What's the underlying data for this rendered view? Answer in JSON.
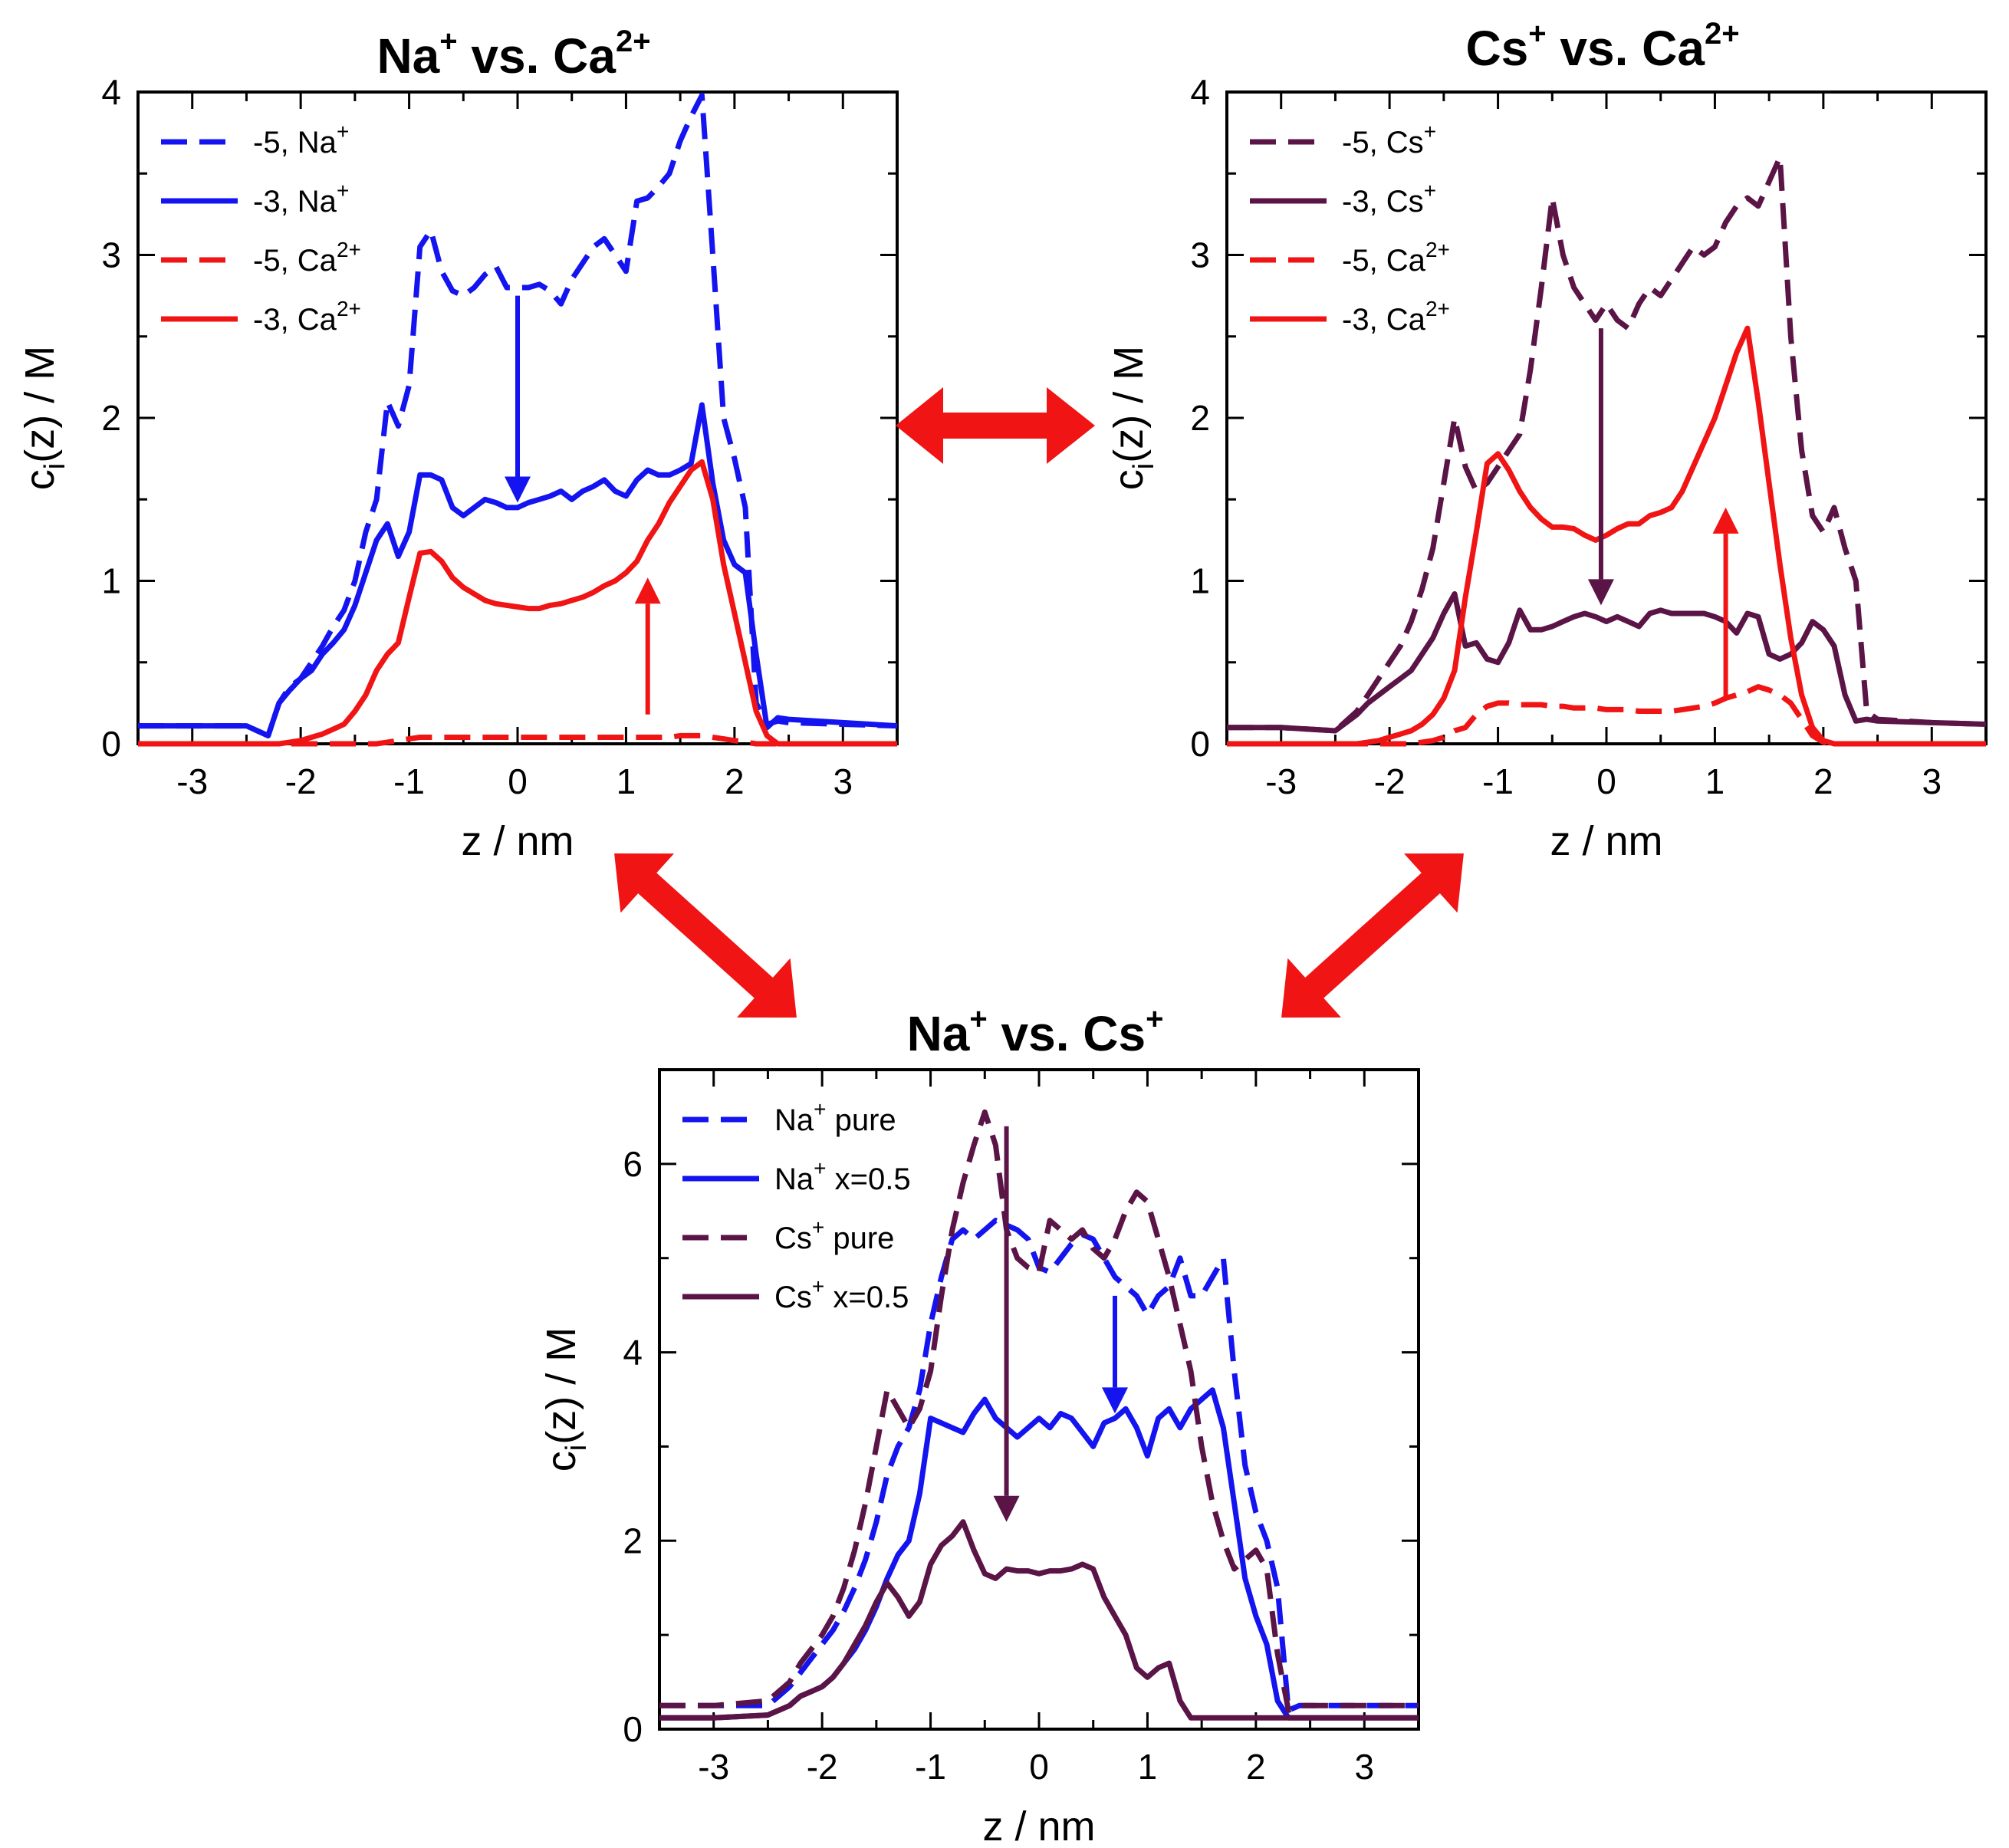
{
  "colors": {
    "na": "#1414f0",
    "cs": "#5a1446",
    "ca": "#f01414",
    "arrow": "#f01414",
    "axis": "#000000"
  },
  "chart_data": [
    {
      "type": "line",
      "title": "Na+ vs. Ca2+",
      "title_parts": {
        "ion1": "Na",
        "ion1_charge": "+",
        "vs": " vs. ",
        "ion2": "Ca",
        "ion2_charge": "2+"
      },
      "xlabel": "z / nm",
      "ylabel": "ci(z) / M",
      "ylabel_parts": {
        "pre": "c",
        "sub": "i",
        "post": "(z) / M"
      },
      "xlim": [
        -3.5,
        3.5
      ],
      "ylim": [
        0,
        4
      ],
      "xticks": [
        -3,
        -2,
        -1,
        0,
        1,
        2,
        3
      ],
      "yticks": [
        0,
        1,
        2,
        3,
        4
      ],
      "x": [
        -3.5,
        -3.0,
        -2.5,
        -2.3,
        -2.2,
        -2.1,
        -2.0,
        -1.9,
        -1.8,
        -1.7,
        -1.6,
        -1.5,
        -1.4,
        -1.3,
        -1.2,
        -1.1,
        -1.0,
        -0.9,
        -0.8,
        -0.7,
        -0.6,
        -0.5,
        -0.4,
        -0.3,
        -0.2,
        -0.1,
        0.0,
        0.1,
        0.2,
        0.3,
        0.4,
        0.5,
        0.6,
        0.7,
        0.8,
        0.9,
        1.0,
        1.1,
        1.2,
        1.3,
        1.4,
        1.5,
        1.6,
        1.7,
        1.8,
        1.9,
        2.0,
        2.1,
        2.2,
        2.3,
        2.4,
        2.5,
        3.0,
        3.5
      ],
      "series": [
        {
          "name": "-5, Na+",
          "label": "-5,",
          "ion": "Na",
          "charge": "+",
          "color": "#1414f0",
          "dash": true,
          "values": [
            0.11,
            0.11,
            0.11,
            0.05,
            0.25,
            0.35,
            0.4,
            0.5,
            0.6,
            0.72,
            0.82,
            1.0,
            1.3,
            1.5,
            2.1,
            1.95,
            2.2,
            3.05,
            3.15,
            2.9,
            2.78,
            2.75,
            2.8,
            2.88,
            2.93,
            2.8,
            2.8,
            2.8,
            2.82,
            2.78,
            2.7,
            2.85,
            2.95,
            3.05,
            3.1,
            3.0,
            2.9,
            3.33,
            3.35,
            3.42,
            3.5,
            3.7,
            3.85,
            3.98,
            3.0,
            2.0,
            1.75,
            1.45,
            0.25,
            0.12,
            0.14,
            0.13,
            0.12,
            0.11
          ]
        },
        {
          "name": "-3, Na+",
          "label": "-3,",
          "ion": "Na",
          "charge": "+",
          "color": "#1414f0",
          "dash": false,
          "values": [
            0.11,
            0.11,
            0.11,
            0.05,
            0.25,
            0.33,
            0.4,
            0.45,
            0.55,
            0.62,
            0.7,
            0.85,
            1.05,
            1.25,
            1.35,
            1.15,
            1.3,
            1.65,
            1.65,
            1.62,
            1.45,
            1.4,
            1.45,
            1.5,
            1.48,
            1.45,
            1.45,
            1.48,
            1.5,
            1.52,
            1.55,
            1.5,
            1.55,
            1.58,
            1.62,
            1.55,
            1.52,
            1.62,
            1.68,
            1.65,
            1.65,
            1.68,
            1.72,
            2.08,
            1.6,
            1.25,
            1.1,
            1.05,
            0.55,
            0.1,
            0.16,
            0.15,
            0.13,
            0.11
          ]
        },
        {
          "name": "-5, Ca2+",
          "label": "-5,",
          "ion": "Ca",
          "charge": "2+",
          "color": "#f01414",
          "dash": true,
          "values": [
            0,
            0,
            0,
            0,
            0,
            0,
            0,
            0,
            0,
            0,
            0,
            0,
            0,
            0,
            0.01,
            0.02,
            0.03,
            0.04,
            0.04,
            0.04,
            0.04,
            0.04,
            0.04,
            0.04,
            0.04,
            0.04,
            0.04,
            0.04,
            0.04,
            0.04,
            0.04,
            0.04,
            0.04,
            0.04,
            0.04,
            0.04,
            0.04,
            0.04,
            0.04,
            0.04,
            0.04,
            0.05,
            0.05,
            0.05,
            0.04,
            0.03,
            0.02,
            0.01,
            0,
            0,
            0,
            0,
            0,
            0
          ]
        },
        {
          "name": "-3, Ca2+",
          "label": "-3,",
          "ion": "Ca",
          "charge": "2+",
          "color": "#f01414",
          "dash": false,
          "values": [
            0,
            0,
            0,
            0,
            0,
            0.01,
            0.02,
            0.04,
            0.06,
            0.09,
            0.12,
            0.2,
            0.3,
            0.45,
            0.55,
            0.62,
            0.9,
            1.17,
            1.18,
            1.12,
            1.02,
            0.96,
            0.92,
            0.88,
            0.86,
            0.85,
            0.84,
            0.83,
            0.83,
            0.85,
            0.86,
            0.88,
            0.9,
            0.93,
            0.97,
            1.0,
            1.05,
            1.12,
            1.25,
            1.35,
            1.48,
            1.58,
            1.68,
            1.73,
            1.5,
            1.1,
            0.8,
            0.5,
            0.2,
            0.05,
            0,
            0,
            0,
            0
          ]
        }
      ],
      "arrows": [
        {
          "color": "#1414f0",
          "x": 0.0,
          "y_from": 2.75,
          "y_to": 1.48
        },
        {
          "color": "#f01414",
          "x": 1.2,
          "y_from": 0.18,
          "y_to": 1.02
        }
      ]
    },
    {
      "type": "line",
      "title": "Cs+ vs. Ca2+",
      "title_parts": {
        "ion1": "Cs",
        "ion1_charge": "+",
        "vs": " vs. ",
        "ion2": "Ca",
        "ion2_charge": "2+"
      },
      "xlabel": "z / nm",
      "ylabel": "ci(z) / M",
      "ylabel_parts": {
        "pre": "c",
        "sub": "i",
        "post": "(z) / M"
      },
      "xlim": [
        -3.5,
        3.5
      ],
      "ylim": [
        0,
        4
      ],
      "xticks": [
        -3,
        -2,
        -1,
        0,
        1,
        2,
        3
      ],
      "yticks": [
        0,
        1,
        2,
        3,
        4
      ],
      "x": [
        -3.5,
        -3.0,
        -2.5,
        -2.3,
        -2.2,
        -2.1,
        -2.0,
        -1.9,
        -1.8,
        -1.7,
        -1.6,
        -1.5,
        -1.4,
        -1.3,
        -1.2,
        -1.1,
        -1.0,
        -0.9,
        -0.8,
        -0.7,
        -0.6,
        -0.5,
        -0.4,
        -0.3,
        -0.2,
        -0.1,
        0.0,
        0.1,
        0.2,
        0.3,
        0.4,
        0.5,
        0.6,
        0.7,
        0.8,
        0.9,
        1.0,
        1.1,
        1.2,
        1.3,
        1.4,
        1.5,
        1.6,
        1.7,
        1.8,
        1.9,
        2.0,
        2.1,
        2.2,
        2.3,
        2.4,
        2.5,
        3.0,
        3.5
      ],
      "series": [
        {
          "name": "-5, Cs+",
          "label": "-5,",
          "ion": "Cs",
          "charge": "+",
          "color": "#5a1446",
          "dash": true,
          "values": [
            0.1,
            0.1,
            0.08,
            0.2,
            0.3,
            0.4,
            0.5,
            0.6,
            0.75,
            0.95,
            1.2,
            1.6,
            2.0,
            1.7,
            1.55,
            1.6,
            1.7,
            1.8,
            1.9,
            2.3,
            2.8,
            3.35,
            3.0,
            2.8,
            2.7,
            2.6,
            2.7,
            2.6,
            2.55,
            2.7,
            2.8,
            2.75,
            2.85,
            2.95,
            3.05,
            3.0,
            3.05,
            3.2,
            3.3,
            3.35,
            3.3,
            3.45,
            3.6,
            2.5,
            1.8,
            1.4,
            1.3,
            1.45,
            1.2,
            1.0,
            0.2,
            0.15,
            0.13,
            0.12
          ]
        },
        {
          "name": "-3, Cs+",
          "label": "-3,",
          "ion": "Cs",
          "charge": "+",
          "color": "#5a1446",
          "dash": false,
          "values": [
            0.1,
            0.1,
            0.08,
            0.18,
            0.25,
            0.3,
            0.35,
            0.4,
            0.45,
            0.55,
            0.65,
            0.8,
            0.92,
            0.6,
            0.62,
            0.52,
            0.5,
            0.62,
            0.82,
            0.7,
            0.7,
            0.72,
            0.75,
            0.78,
            0.8,
            0.78,
            0.75,
            0.78,
            0.75,
            0.72,
            0.8,
            0.82,
            0.8,
            0.8,
            0.8,
            0.8,
            0.78,
            0.75,
            0.68,
            0.8,
            0.78,
            0.55,
            0.52,
            0.55,
            0.62,
            0.75,
            0.7,
            0.6,
            0.3,
            0.14,
            0.15,
            0.14,
            0.13,
            0.12
          ]
        },
        {
          "name": "-5, Ca2+",
          "label": "-5,",
          "ion": "Ca",
          "charge": "2+",
          "color": "#f01414",
          "dash": true,
          "values": [
            0,
            0,
            0,
            0,
            0,
            0,
            0,
            0,
            0,
            0.01,
            0.02,
            0.04,
            0.08,
            0.1,
            0.18,
            0.23,
            0.25,
            0.25,
            0.24,
            0.24,
            0.24,
            0.23,
            0.23,
            0.22,
            0.22,
            0.22,
            0.21,
            0.21,
            0.21,
            0.2,
            0.2,
            0.2,
            0.2,
            0.21,
            0.22,
            0.23,
            0.25,
            0.28,
            0.3,
            0.32,
            0.35,
            0.33,
            0.3,
            0.25,
            0.15,
            0.05,
            0.01,
            0,
            0,
            0,
            0,
            0,
            0,
            0
          ]
        },
        {
          "name": "-3, Ca2+",
          "label": "-3,",
          "ion": "Ca",
          "charge": "2+",
          "color": "#f01414",
          "dash": false,
          "values": [
            0,
            0,
            0,
            0,
            0.01,
            0.02,
            0.04,
            0.06,
            0.08,
            0.12,
            0.18,
            0.28,
            0.45,
            0.9,
            1.3,
            1.72,
            1.78,
            1.68,
            1.55,
            1.45,
            1.38,
            1.33,
            1.33,
            1.32,
            1.28,
            1.25,
            1.28,
            1.32,
            1.35,
            1.35,
            1.4,
            1.42,
            1.45,
            1.55,
            1.7,
            1.85,
            2.0,
            2.2,
            2.4,
            2.55,
            2.1,
            1.6,
            1.1,
            0.65,
            0.3,
            0.1,
            0.02,
            0,
            0,
            0,
            0,
            0,
            0,
            0
          ]
        }
      ],
      "arrows": [
        {
          "color": "#5a1446",
          "x": -0.05,
          "y_from": 2.55,
          "y_to": 0.85
        },
        {
          "color": "#f01414",
          "x": 1.1,
          "y_from": 0.28,
          "y_to": 1.45
        }
      ]
    },
    {
      "type": "line",
      "title": "Na+ vs. Cs+",
      "title_parts": {
        "ion1": "Na",
        "ion1_charge": "+",
        "vs": " vs. ",
        "ion2": "Cs",
        "ion2_charge": "+"
      },
      "xlabel": "z / nm",
      "ylabel": "ci(z) / M",
      "ylabel_parts": {
        "pre": "c",
        "sub": "i",
        "post": "(z) / M"
      },
      "xlim": [
        -3.5,
        3.5
      ],
      "ylim": [
        0,
        7
      ],
      "xticks": [
        -3,
        -2,
        -1,
        0,
        1,
        2,
        3
      ],
      "yticks": [
        0,
        2,
        4,
        6
      ],
      "x": [
        -3.5,
        -3.0,
        -2.5,
        -2.3,
        -2.2,
        -2.1,
        -2.0,
        -1.9,
        -1.8,
        -1.7,
        -1.6,
        -1.5,
        -1.4,
        -1.3,
        -1.2,
        -1.1,
        -1.0,
        -0.9,
        -0.8,
        -0.7,
        -0.6,
        -0.5,
        -0.4,
        -0.3,
        -0.2,
        -0.1,
        0.0,
        0.1,
        0.2,
        0.3,
        0.4,
        0.5,
        0.6,
        0.7,
        0.8,
        0.9,
        1.0,
        1.1,
        1.2,
        1.3,
        1.4,
        1.5,
        1.6,
        1.7,
        1.8,
        1.9,
        2.0,
        2.1,
        2.2,
        2.3,
        2.4,
        2.5,
        3.0,
        3.5
      ],
      "series": [
        {
          "name": "Na+ pure",
          "label": " pure",
          "ion": "Na",
          "charge": "+",
          "color": "#1414f0",
          "dash": true,
          "values": [
            0.25,
            0.25,
            0.25,
            0.45,
            0.6,
            0.75,
            0.9,
            1.05,
            1.25,
            1.5,
            1.8,
            2.2,
            2.7,
            3.0,
            3.2,
            3.6,
            4.3,
            4.8,
            5.2,
            5.3,
            5.2,
            5.3,
            5.4,
            5.35,
            5.3,
            5.2,
            4.9,
            4.85,
            5.0,
            5.15,
            5.25,
            5.2,
            5.0,
            4.8,
            4.7,
            4.6,
            4.4,
            4.6,
            4.7,
            5.0,
            4.6,
            4.6,
            4.8,
            5.0,
            3.8,
            2.8,
            2.3,
            2.0,
            1.5,
            0.2,
            0.25,
            0.25,
            0.25,
            0.25
          ]
        },
        {
          "name": "Na+ x=0.5",
          "label": " x=0.5",
          "ion": "Na",
          "charge": "+",
          "color": "#1414f0",
          "dash": false,
          "values": [
            0.12,
            0.12,
            0.15,
            0.25,
            0.35,
            0.4,
            0.45,
            0.55,
            0.7,
            0.85,
            1.05,
            1.3,
            1.6,
            1.85,
            2.0,
            2.5,
            3.3,
            3.25,
            3.2,
            3.15,
            3.35,
            3.5,
            3.3,
            3.2,
            3.1,
            3.2,
            3.3,
            3.2,
            3.35,
            3.3,
            3.15,
            3.0,
            3.25,
            3.3,
            3.4,
            3.2,
            2.9,
            3.3,
            3.4,
            3.2,
            3.4,
            3.5,
            3.6,
            3.2,
            2.4,
            1.6,
            1.2,
            0.9,
            0.3,
            0.12,
            0.12,
            0.12,
            0.12,
            0.12
          ]
        },
        {
          "name": "Cs+ pure",
          "label": " pure",
          "ion": "Cs",
          "charge": "+",
          "color": "#5a1446",
          "dash": true,
          "values": [
            0.25,
            0.25,
            0.3,
            0.5,
            0.7,
            0.85,
            1.0,
            1.2,
            1.5,
            1.9,
            2.4,
            3.0,
            3.6,
            3.4,
            3.2,
            3.4,
            3.8,
            4.6,
            5.3,
            5.8,
            6.2,
            6.55,
            6.2,
            5.3,
            5.0,
            4.9,
            4.85,
            5.4,
            5.3,
            5.2,
            5.3,
            5.1,
            5.0,
            5.2,
            5.5,
            5.7,
            5.6,
            5.2,
            4.8,
            4.3,
            3.8,
            3.0,
            2.4,
            2.0,
            1.7,
            1.8,
            1.9,
            1.7,
            0.8,
            0.2,
            0.25,
            0.25,
            0.25,
            0.25
          ]
        },
        {
          "name": "Cs+ x=0.5",
          "label": " x=0.5",
          "ion": "Cs",
          "charge": "+",
          "color": "#5a1446",
          "dash": false,
          "values": [
            0.12,
            0.12,
            0.15,
            0.25,
            0.35,
            0.4,
            0.45,
            0.55,
            0.7,
            0.9,
            1.1,
            1.35,
            1.55,
            1.4,
            1.2,
            1.35,
            1.75,
            1.95,
            2.05,
            2.2,
            1.9,
            1.65,
            1.6,
            1.7,
            1.68,
            1.68,
            1.65,
            1.68,
            1.68,
            1.7,
            1.75,
            1.7,
            1.4,
            1.2,
            1.0,
            0.65,
            0.55,
            0.65,
            0.7,
            0.3,
            0.12,
            0.12,
            0.12,
            0.12,
            0.12,
            0.12,
            0.12,
            0.12,
            0.12,
            0.12,
            0.12,
            0.12,
            0.12,
            0.12
          ]
        }
      ],
      "arrows": [
        {
          "color": "#5a1446",
          "x": -0.3,
          "y_from": 6.4,
          "y_to": 2.2
        },
        {
          "color": "#1414f0",
          "x": 0.7,
          "y_from": 4.6,
          "y_to": 3.35
        }
      ]
    }
  ]
}
